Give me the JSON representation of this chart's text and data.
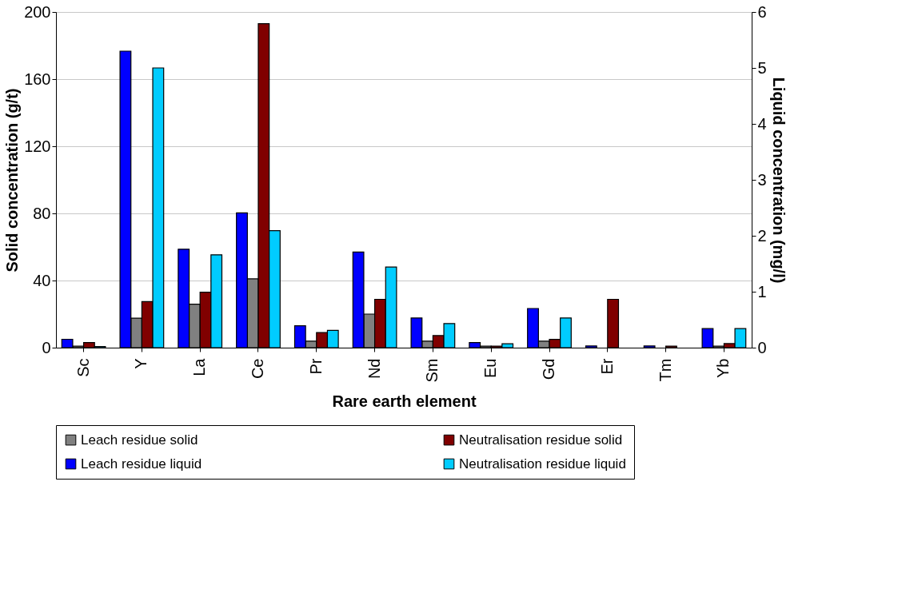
{
  "chart_data": {
    "type": "bar",
    "categories": [
      "Sc",
      "Y",
      "La",
      "Ce",
      "Pr",
      "Nd",
      "Sm",
      "Eu",
      "Gd",
      "Er",
      "Tm",
      "Yb"
    ],
    "xlabel": "Rare earth element",
    "ylabel": "Solid concentration (g/t)",
    "y2label": "Liquid concentration (mg/l)",
    "ylim": [
      0,
      200
    ],
    "yticks": [
      0,
      40,
      80,
      120,
      160,
      200
    ],
    "y2lim": [
      0,
      6
    ],
    "y2ticks": [
      0,
      1,
      2,
      3,
      4,
      5,
      6
    ],
    "grid": "y",
    "legend": "bottom",
    "series": [
      {
        "name": "Leach residue liquid",
        "color": "#0000ff",
        "axis": "y2",
        "values": [
          0.15,
          5.3,
          1.76,
          2.41,
          0.39,
          1.71,
          0.53,
          0.09,
          0.7,
          0.03,
          0.03,
          0.34
        ]
      },
      {
        "name": "Leach residue solid",
        "color": "#808080",
        "values": [
          0.9,
          17.6,
          25.9,
          41,
          3.9,
          20,
          3.9,
          0.9,
          3.9,
          null,
          null,
          0.9
        ]
      },
      {
        "name": "Neutralisation residue solid",
        "color": "#800000",
        "values": [
          3,
          27.4,
          33,
          193,
          9,
          28.8,
          7.2,
          0.9,
          4.9,
          28.8,
          0.9,
          2.4
        ]
      },
      {
        "name": "Neutralisation residue liquid",
        "color": "#00ccff",
        "axis": "y2",
        "values": [
          0.02,
          5.0,
          1.66,
          2.09,
          0.31,
          1.44,
          0.43,
          0.07,
          0.53,
          null,
          null,
          0.34
        ]
      }
    ]
  }
}
